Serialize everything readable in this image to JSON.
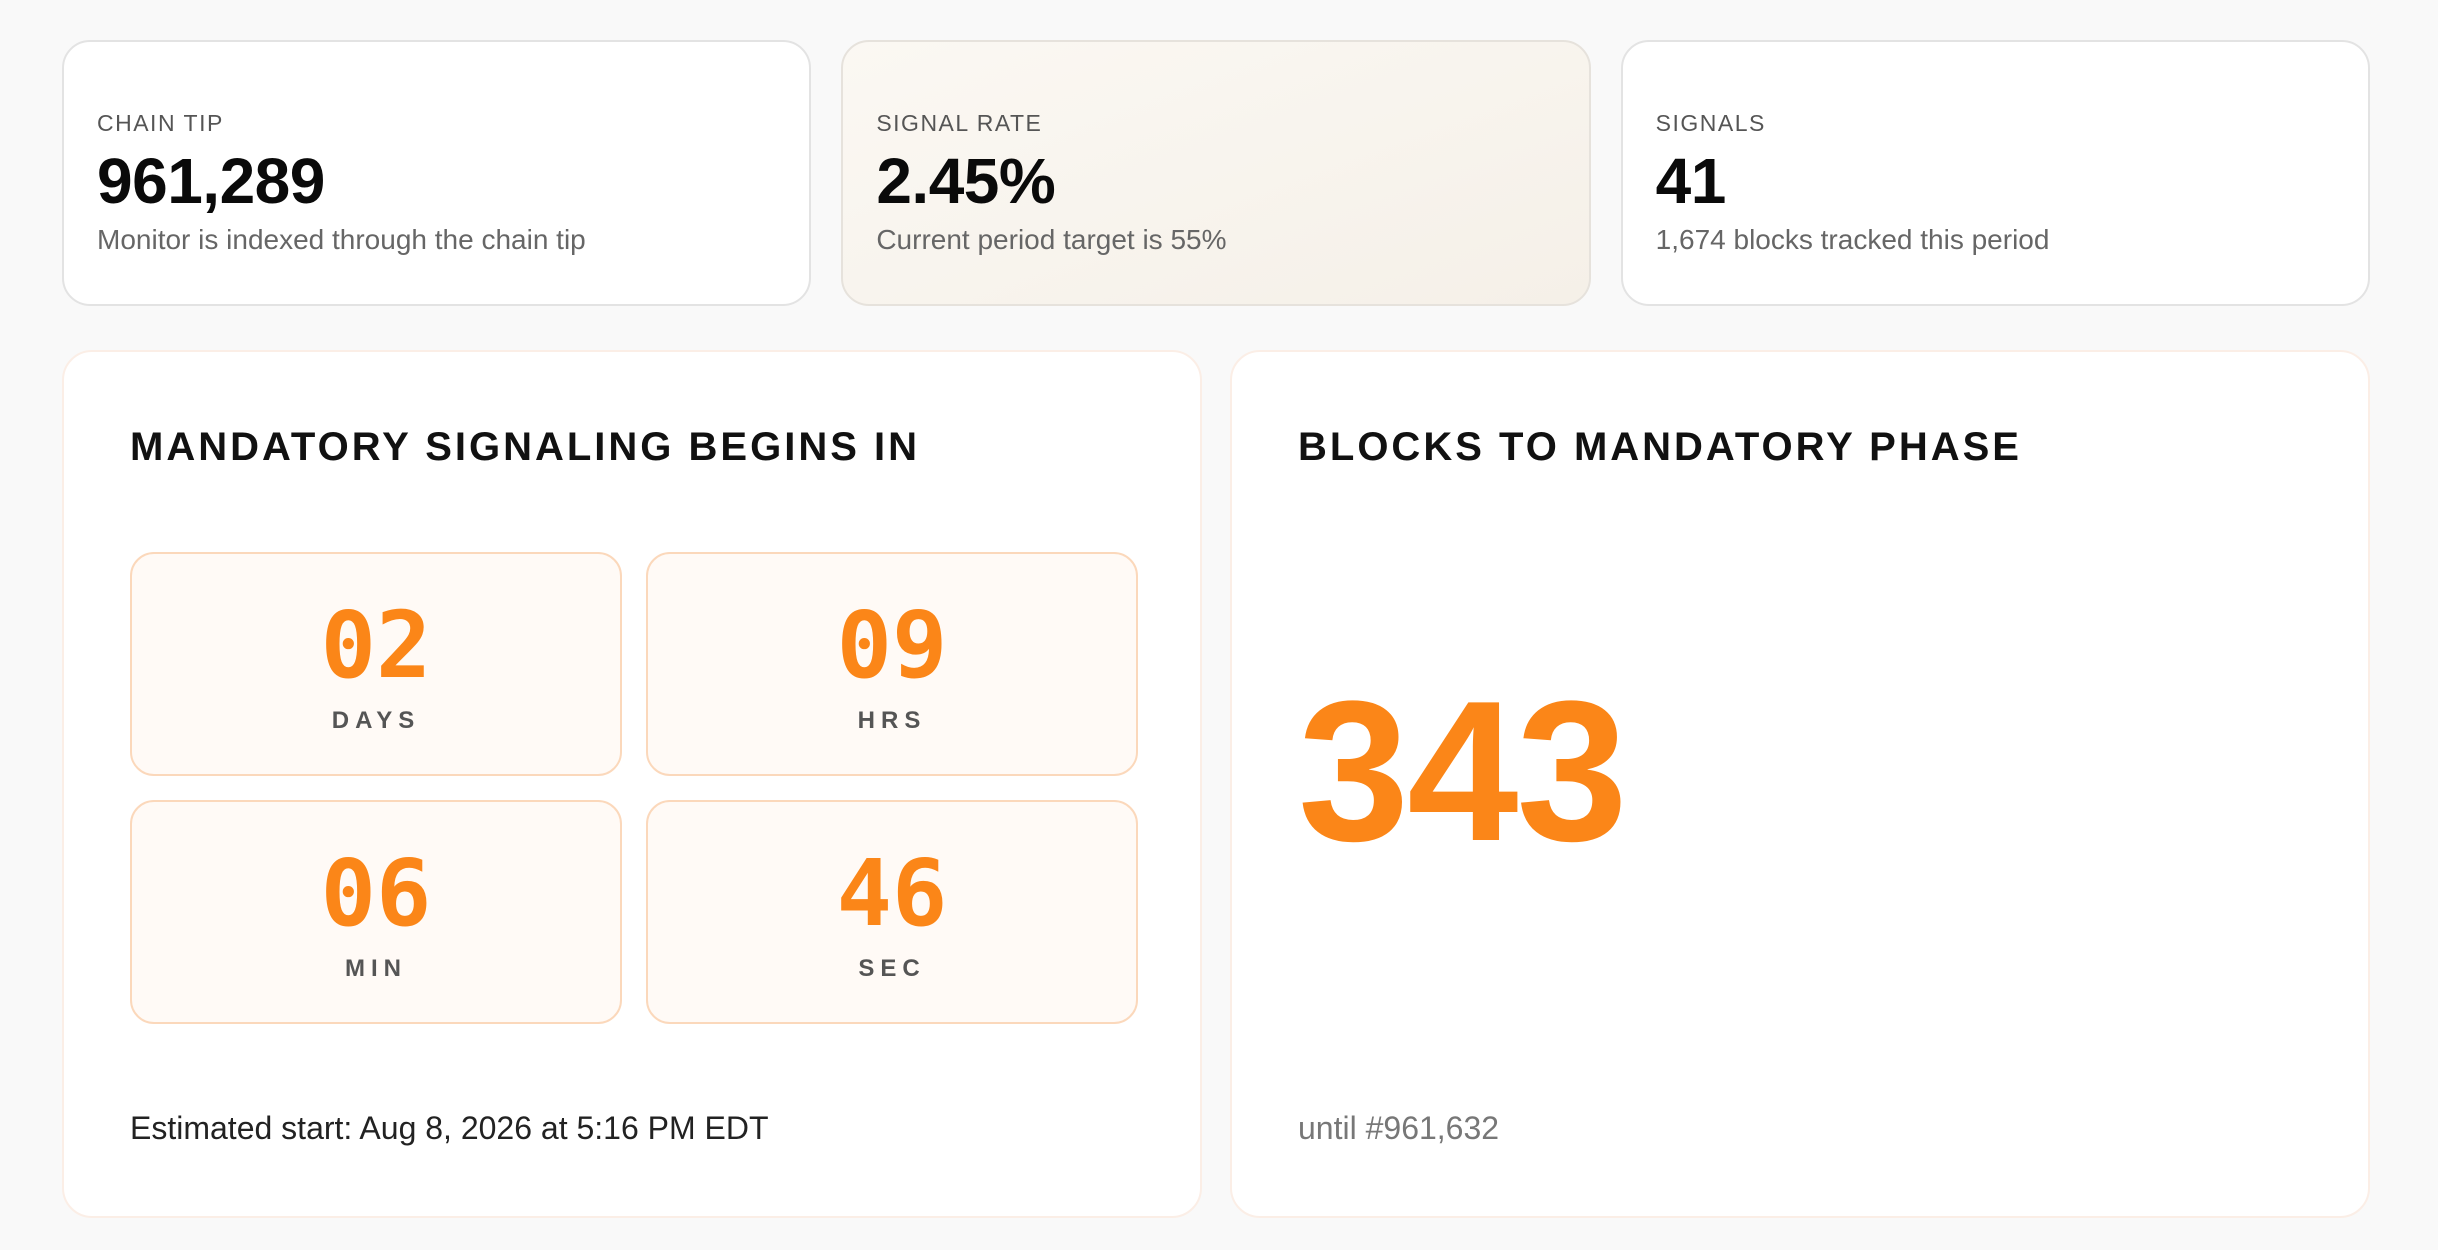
{
  "stats": [
    {
      "label": "CHAIN TIP",
      "value": "961,289",
      "sub": "Monitor is indexed through the chain tip"
    },
    {
      "label": "SIGNAL RATE",
      "value": "2.45%",
      "sub": "Current period target is 55%"
    },
    {
      "label": "SIGNALS",
      "value": "41",
      "sub": "1,674 blocks tracked this period"
    }
  ],
  "countdown": {
    "title": "MANDATORY SIGNALING BEGINS IN",
    "units": [
      {
        "value": "02",
        "label": "DAYS"
      },
      {
        "value": "09",
        "label": "HRS"
      },
      {
        "value": "06",
        "label": "MIN"
      },
      {
        "value": "46",
        "label": "SEC"
      }
    ],
    "footer": "Estimated start: Aug 8, 2026 at 5:16 PM EDT"
  },
  "blocks": {
    "title": "BLOCKS TO MANDATORY PHASE",
    "value": "343",
    "footer": "until #961,632"
  },
  "colors": {
    "accent": "#fb8618",
    "highlight_card_bg": "#f7f2eb",
    "countdown_box_bg": "#fffaf6",
    "countdown_box_border": "#fbd8bb"
  }
}
